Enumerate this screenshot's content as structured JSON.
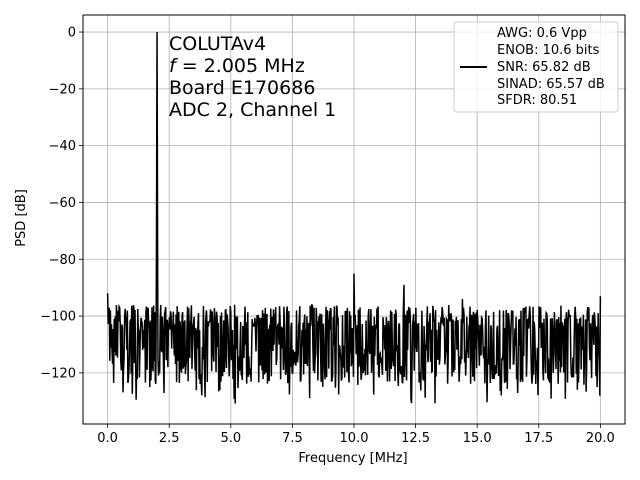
{
  "chart_data": {
    "type": "line",
    "title": "",
    "xlabel": "Frequency [MHz]",
    "ylabel": "PSD [dB]",
    "xlim": [
      -1,
      21
    ],
    "ylim": [
      -138,
      6
    ],
    "grid": true,
    "x_ticks": [
      0,
      2.5,
      5,
      7.5,
      10,
      12.5,
      15,
      17.5,
      20
    ],
    "x_tick_labels": [
      "0.0",
      "2.5",
      "5.0",
      "7.5",
      "10.0",
      "12.5",
      "15.0",
      "17.5",
      "20.0"
    ],
    "y_ticks": [
      0,
      -20,
      -40,
      -60,
      -80,
      -100,
      -120
    ],
    "y_tick_labels": [
      "0",
      "−20",
      "−40",
      "−60",
      "−80",
      "−100",
      "−120"
    ],
    "annotation": {
      "line1": "COLUTAv4",
      "line2_var": "f",
      "line2_rest": " = 2.005 MHz",
      "line3": "Board E170686",
      "line4": "ADC 2, Channel 1"
    },
    "legend": {
      "location": "upper right",
      "lines": [
        "AWG: 0.6 Vpp",
        "ENOB: 10.6 bits",
        "SNR: 65.82 dB",
        "SINAD: 65.57 dB",
        "SFDR: 80.51"
      ]
    },
    "series": [
      {
        "color": "#000000",
        "noise_floor": {
          "x_start": 0.0,
          "x_end": 20.0,
          "mean_db": -108,
          "min_db": -131,
          "max_db": -96
        },
        "peaks": [
          {
            "x": 0.0,
            "y": -92
          },
          {
            "x": 2.005,
            "y": 0
          },
          {
            "x": 1.98,
            "y": -82
          },
          {
            "x": 2.03,
            "y": -84
          },
          {
            "x": 4.01,
            "y": -98
          },
          {
            "x": 10.0,
            "y": -85
          },
          {
            "x": 12.03,
            "y": -89
          },
          {
            "x": 14.4,
            "y": -94
          },
          {
            "x": 20.0,
            "y": -93
          }
        ]
      }
    ]
  }
}
